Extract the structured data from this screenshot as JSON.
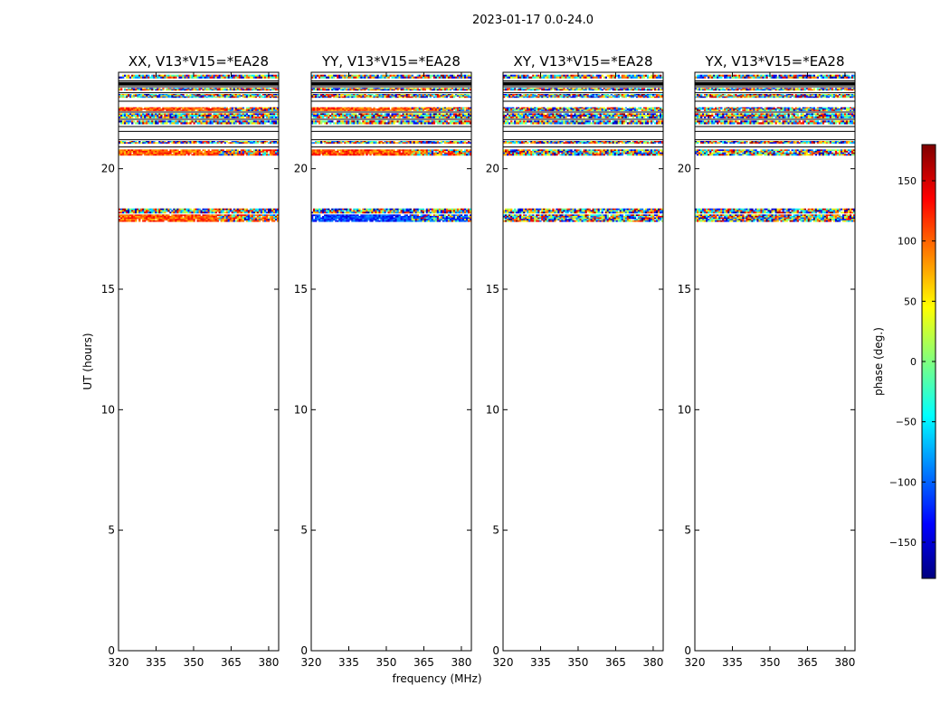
{
  "figure": {
    "suptitle": "2023-01-17 0.0-24.0",
    "xlabel": "frequency (MHz)",
    "ylabel": "UT (hours)"
  },
  "chart_data": {
    "type": "heatmap",
    "xlim": [
      320,
      384
    ],
    "ylim": [
      0,
      24
    ],
    "xticks": [
      320,
      335,
      350,
      365,
      380
    ],
    "yticks": [
      0,
      5,
      10,
      15,
      20
    ],
    "panels": [
      {
        "title": "XX, V13*V15=*EA28",
        "bands": [
          {
            "y0": 23.75,
            "y1": 23.9,
            "style": "noise"
          },
          {
            "y0": 23.45,
            "y1": 23.6,
            "style": "black"
          },
          {
            "y0": 23.25,
            "y1": 23.35,
            "style": "noise"
          },
          {
            "y0": 22.95,
            "y1": 23.1,
            "style": "noise"
          },
          {
            "y0": 22.4,
            "y1": 22.55,
            "style": "warm"
          },
          {
            "y0": 22.1,
            "y1": 22.3,
            "style": "noise"
          },
          {
            "y0": 21.85,
            "y1": 22.0,
            "style": "noise"
          },
          {
            "y0": 21.05,
            "y1": 21.15,
            "style": "noise"
          },
          {
            "y0": 20.55,
            "y1": 20.8,
            "style": "warm"
          },
          {
            "y0": 18.15,
            "y1": 18.35,
            "style": "noise"
          },
          {
            "y0": 17.8,
            "y1": 18.1,
            "style": "warm"
          }
        ]
      },
      {
        "title": "YY, V13*V15=*EA28",
        "bands": [
          {
            "y0": 23.75,
            "y1": 23.9,
            "style": "noise"
          },
          {
            "y0": 23.45,
            "y1": 23.6,
            "style": "black"
          },
          {
            "y0": 23.25,
            "y1": 23.35,
            "style": "noise"
          },
          {
            "y0": 22.95,
            "y1": 23.1,
            "style": "noise"
          },
          {
            "y0": 22.4,
            "y1": 22.55,
            "style": "warm"
          },
          {
            "y0": 22.1,
            "y1": 22.3,
            "style": "noise"
          },
          {
            "y0": 21.85,
            "y1": 22.0,
            "style": "noise"
          },
          {
            "y0": 21.05,
            "y1": 21.15,
            "style": "noise"
          },
          {
            "y0": 20.55,
            "y1": 20.8,
            "style": "warm"
          },
          {
            "y0": 18.15,
            "y1": 18.35,
            "style": "noise"
          },
          {
            "y0": 17.8,
            "y1": 18.1,
            "style": "cool"
          }
        ]
      },
      {
        "title": "XY, V13*V15=*EA28",
        "bands": [
          {
            "y0": 23.75,
            "y1": 23.9,
            "style": "noise"
          },
          {
            "y0": 23.45,
            "y1": 23.6,
            "style": "black"
          },
          {
            "y0": 23.25,
            "y1": 23.35,
            "style": "noise"
          },
          {
            "y0": 22.95,
            "y1": 23.1,
            "style": "noise"
          },
          {
            "y0": 22.4,
            "y1": 22.55,
            "style": "noise"
          },
          {
            "y0": 22.1,
            "y1": 22.3,
            "style": "noise"
          },
          {
            "y0": 21.85,
            "y1": 22.0,
            "style": "noise"
          },
          {
            "y0": 21.05,
            "y1": 21.15,
            "style": "noise"
          },
          {
            "y0": 20.55,
            "y1": 20.8,
            "style": "noise"
          },
          {
            "y0": 18.15,
            "y1": 18.35,
            "style": "noise"
          },
          {
            "y0": 17.8,
            "y1": 18.1,
            "style": "noise"
          }
        ]
      },
      {
        "title": "YX, V13*V15=*EA28",
        "bands": [
          {
            "y0": 23.75,
            "y1": 23.9,
            "style": "noise"
          },
          {
            "y0": 23.45,
            "y1": 23.6,
            "style": "black"
          },
          {
            "y0": 23.25,
            "y1": 23.35,
            "style": "noise"
          },
          {
            "y0": 22.95,
            "y1": 23.1,
            "style": "noise"
          },
          {
            "y0": 22.4,
            "y1": 22.55,
            "style": "noise"
          },
          {
            "y0": 22.1,
            "y1": 22.3,
            "style": "noise"
          },
          {
            "y0": 21.85,
            "y1": 22.0,
            "style": "noise"
          },
          {
            "y0": 21.05,
            "y1": 21.15,
            "style": "noise"
          },
          {
            "y0": 20.55,
            "y1": 20.8,
            "style": "noise"
          },
          {
            "y0": 18.15,
            "y1": 18.35,
            "style": "noise"
          },
          {
            "y0": 17.8,
            "y1": 18.1,
            "style": "noise"
          }
        ]
      }
    ],
    "hlines": [
      23.65,
      23.4,
      23.15,
      22.8,
      22.35,
      22.05,
      21.75,
      21.55,
      21.2,
      20.9
    ],
    "colorbar": {
      "label": "phase (deg.)",
      "range": [
        -180,
        180
      ],
      "ticks": [
        -150,
        -100,
        -50,
        0,
        50,
        100,
        150
      ],
      "tick_labels": [
        "−150",
        "−100",
        "−50",
        "0",
        "50",
        "100",
        "150"
      ],
      "colormap": "jet",
      "colors": [
        "#00007f",
        "#0000ff",
        "#007fff",
        "#00ffff",
        "#7fff7f",
        "#ffff00",
        "#ff7f00",
        "#ff0000",
        "#7f0000"
      ]
    }
  }
}
